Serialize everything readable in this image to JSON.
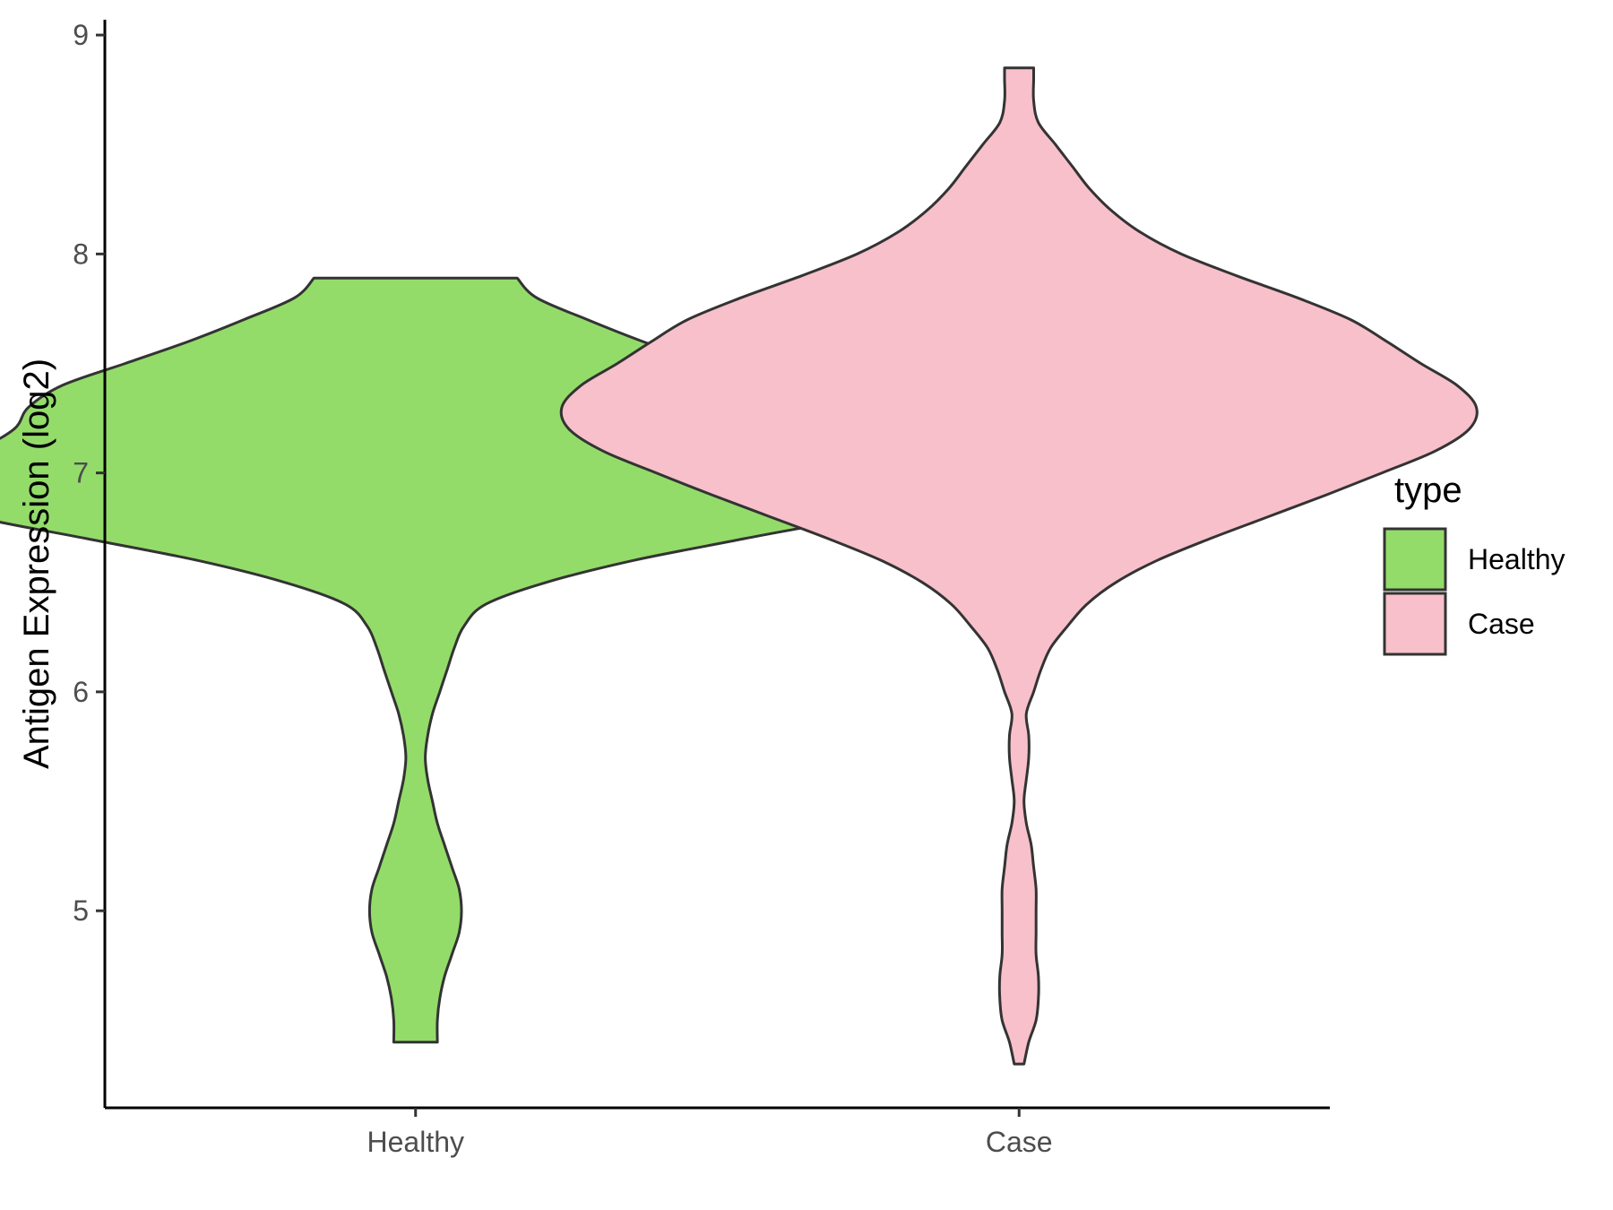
{
  "chart_data": {
    "type": "violin",
    "title": "",
    "xlabel": "",
    "ylabel": "Antigen Expression (log2)",
    "categories": [
      "Healthy",
      "Case"
    ],
    "ylim": [
      4.1,
      9.07
    ],
    "yticks": [
      5,
      6,
      7,
      8,
      9
    ],
    "grid": false,
    "legend": {
      "title": "type",
      "position": "right",
      "entries": [
        {
          "label": "Healthy",
          "color": "#93dc6a"
        },
        {
          "label": "Case",
          "color": "#f7c0cb"
        }
      ]
    },
    "series": [
      {
        "category": "Healthy",
        "color": "#93dc6a",
        "min": 4.4,
        "max": 7.89,
        "density_halfwidth": [
          [
            4.4,
            0.09
          ],
          [
            4.5,
            0.09
          ],
          [
            4.6,
            0.1
          ],
          [
            4.7,
            0.12
          ],
          [
            4.8,
            0.15
          ],
          [
            4.9,
            0.18
          ],
          [
            5.0,
            0.19
          ],
          [
            5.1,
            0.18
          ],
          [
            5.2,
            0.15
          ],
          [
            5.3,
            0.12
          ],
          [
            5.4,
            0.09
          ],
          [
            5.5,
            0.07
          ],
          [
            5.6,
            0.05
          ],
          [
            5.7,
            0.04
          ],
          [
            5.8,
            0.05
          ],
          [
            5.9,
            0.07
          ],
          [
            6.0,
            0.1
          ],
          [
            6.1,
            0.13
          ],
          [
            6.2,
            0.16
          ],
          [
            6.3,
            0.2
          ],
          [
            6.4,
            0.29
          ],
          [
            6.5,
            0.54
          ],
          [
            6.6,
            0.9
          ],
          [
            6.7,
            1.36
          ],
          [
            6.8,
            1.82
          ],
          [
            6.9,
            2.09
          ],
          [
            7.0,
            2.05
          ],
          [
            7.1,
            1.82
          ],
          [
            7.2,
            1.66
          ],
          [
            7.3,
            1.6
          ],
          [
            7.4,
            1.46
          ],
          [
            7.5,
            1.2
          ],
          [
            7.6,
            0.94
          ],
          [
            7.7,
            0.71
          ],
          [
            7.8,
            0.5
          ],
          [
            7.89,
            0.42
          ]
        ]
      },
      {
        "category": "Case",
        "color": "#f7c0cb",
        "min": 4.3,
        "max": 8.85,
        "density_halfwidth": [
          [
            4.3,
            0.02
          ],
          [
            4.4,
            0.04
          ],
          [
            4.5,
            0.07
          ],
          [
            4.6,
            0.08
          ],
          [
            4.7,
            0.08
          ],
          [
            4.8,
            0.07
          ],
          [
            4.9,
            0.07
          ],
          [
            5.0,
            0.07
          ],
          [
            5.1,
            0.07
          ],
          [
            5.2,
            0.06
          ],
          [
            5.3,
            0.05
          ],
          [
            5.4,
            0.03
          ],
          [
            5.5,
            0.02
          ],
          [
            5.6,
            0.03
          ],
          [
            5.7,
            0.04
          ],
          [
            5.8,
            0.04
          ],
          [
            5.9,
            0.03
          ],
          [
            6.0,
            0.06
          ],
          [
            6.1,
            0.09
          ],
          [
            6.2,
            0.13
          ],
          [
            6.3,
            0.2
          ],
          [
            6.4,
            0.28
          ],
          [
            6.5,
            0.4
          ],
          [
            6.6,
            0.57
          ],
          [
            6.7,
            0.79
          ],
          [
            6.8,
            1.03
          ],
          [
            6.9,
            1.27
          ],
          [
            7.0,
            1.5
          ],
          [
            7.1,
            1.72
          ],
          [
            7.2,
            1.86
          ],
          [
            7.3,
            1.89
          ],
          [
            7.4,
            1.81
          ],
          [
            7.5,
            1.66
          ],
          [
            7.6,
            1.52
          ],
          [
            7.7,
            1.37
          ],
          [
            7.8,
            1.15
          ],
          [
            7.9,
            0.9
          ],
          [
            8.0,
            0.67
          ],
          [
            8.1,
            0.5
          ],
          [
            8.2,
            0.38
          ],
          [
            8.3,
            0.29
          ],
          [
            8.4,
            0.22
          ],
          [
            8.5,
            0.15
          ],
          [
            8.6,
            0.08
          ],
          [
            8.7,
            0.06
          ],
          [
            8.8,
            0.06
          ],
          [
            8.85,
            0.06
          ]
        ]
      }
    ]
  }
}
